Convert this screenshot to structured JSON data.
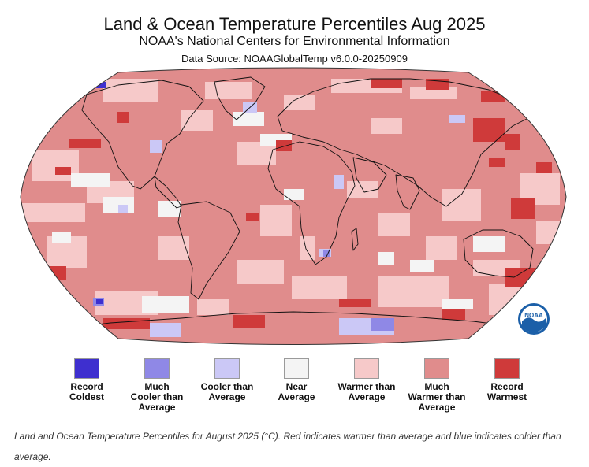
{
  "title": "Land & Ocean Temperature Percentiles Aug 2025",
  "subtitle": "NOAA's National Centers for Environmental Information",
  "source": "Data Source: NOAAGlobalTemp v6.0.0-20250909",
  "logo": {
    "text": "NOAA",
    "icon": "noaa-logo-icon"
  },
  "legend": [
    {
      "label": "Record\nColdest",
      "color": "#3e2fcf"
    },
    {
      "label": "Much\nCooler than\nAverage",
      "color": "#8f88e6"
    },
    {
      "label": "Cooler than\nAverage",
      "color": "#cbc8f6"
    },
    {
      "label": "Near\nAverage",
      "color": "#f4f4f4"
    },
    {
      "label": "Warmer than\nAverage",
      "color": "#f6c9c9"
    },
    {
      "label": "Much\nWarmer than\nAverage",
      "color": "#e08c8c"
    },
    {
      "label": "Record\nWarmest",
      "color": "#cf3a3a"
    }
  ],
  "caption": "Land and Ocean Temperature Percentiles for August 2025 (°C). Red indicates warmer than average and blue indicates colder than average."
}
